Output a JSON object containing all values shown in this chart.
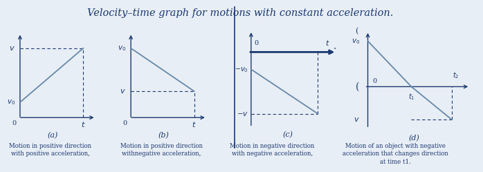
{
  "title": "Velocity–time graph for motions with constant acceleration.",
  "title_color": "#1a3870",
  "title_fontsize": 10.5,
  "bg_color": "#e8eef5",
  "line_color": "#6688aa",
  "axes_color": "#1a3870",
  "text_color": "#1a3870",
  "descriptions": [
    "Motion in positive direction\nwith positive acceleration,",
    "Motion in positive direction\nwithnegative acceleration,",
    "Motion in negative direction\nwith negative acceleration,",
    "Motion of an object with negative\nacceleration that changes direction\nat time t1."
  ]
}
